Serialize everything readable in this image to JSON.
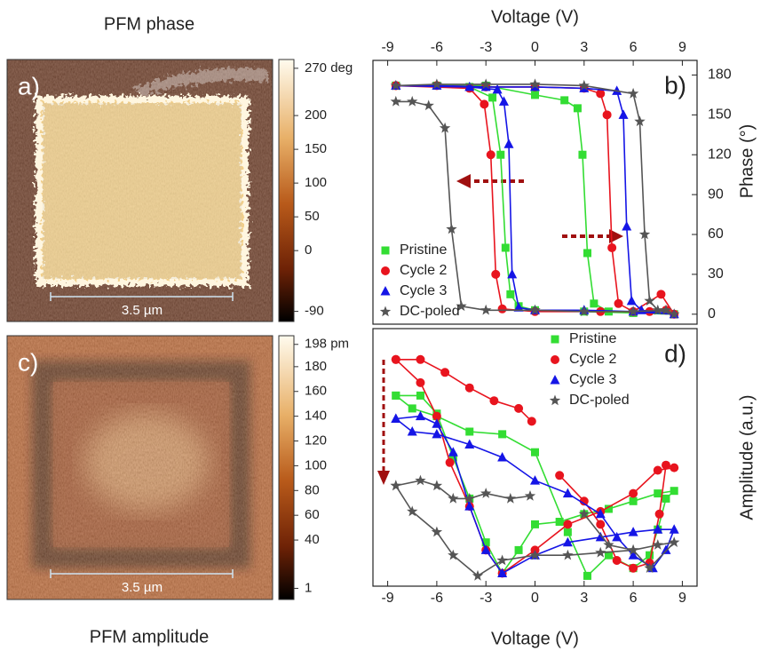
{
  "images": [
    {
      "title": "PFM phase",
      "panel_label": "a)",
      "scale_bar": "3.5 µm",
      "colorbar": {
        "clim": [
          -105,
          283
        ],
        "ticks": [
          {
            "value": 270,
            "label": "270 deg"
          },
          200,
          150,
          100,
          50,
          0,
          -90
        ]
      }
    },
    {
      "title": "PFM amplitude",
      "panel_label": "c)",
      "scale_bar": "3.5 µm",
      "colorbar": {
        "clim": [
          -8,
          205
        ],
        "ticks": [
          {
            "value": 198,
            "label": "198 pm"
          },
          180,
          160,
          140,
          120,
          100,
          80,
          60,
          40,
          1
        ]
      }
    }
  ],
  "chart_data": [
    {
      "type": "line",
      "panel_label": "b)",
      "xlabel": "Voltage (V)",
      "ylabel": "Phase (°)",
      "xlim": [
        -9.9,
        9.9
      ],
      "xticks": [
        -9,
        -6,
        -3,
        0,
        3,
        6,
        9
      ],
      "ylim": [
        -7.5,
        191
      ],
      "yticks": [
        0,
        30,
        60,
        90,
        120,
        150,
        180
      ],
      "legend": "lower left",
      "series": [
        {
          "name": "Pristine",
          "color": "#33dd33",
          "marker": "square",
          "x": [
            -8.5,
            -6,
            -3,
            0,
            1.8,
            2.6,
            2.9,
            3.2,
            3.6,
            4.5,
            6,
            8.5,
            6,
            3,
            0,
            -1,
            -1.5,
            -1.8,
            -2.1,
            -2.6,
            -4,
            -8.5
          ],
          "values": [
            172,
            172,
            172,
            165,
            161,
            155,
            120,
            46,
            8,
            2,
            1,
            0,
            1,
            2,
            3,
            6,
            15,
            50,
            120,
            163,
            171,
            172
          ]
        },
        {
          "name": "Cycle 2",
          "color": "#e8141e",
          "marker": "circle",
          "x": [
            -8.5,
            -6,
            -3,
            0,
            3,
            4,
            4.4,
            4.7,
            5.1,
            6,
            7.7,
            8.5,
            8,
            7,
            4,
            0,
            -2,
            -2.4,
            -2.7,
            -3.1,
            -4,
            -8.5
          ],
          "values": [
            172,
            172,
            171,
            171,
            170,
            166,
            150,
            50,
            8,
            2,
            15,
            0,
            3,
            2,
            2,
            2,
            4,
            30,
            120,
            158,
            170,
            172
          ]
        },
        {
          "name": "Cycle 3",
          "color": "#1515e6",
          "marker": "triangle",
          "x": [
            -8.5,
            -6,
            -3,
            0,
            3,
            5,
            5.4,
            5.6,
            5.9,
            6.5,
            8.5,
            6,
            3,
            0,
            -1,
            -1.4,
            -1.6,
            -1.9,
            -2.3,
            -4,
            -8.5
          ],
          "values": [
            172,
            172,
            171,
            171,
            170,
            168,
            150,
            66,
            10,
            3,
            0,
            2,
            3,
            3,
            5,
            30,
            128,
            160,
            169,
            171,
            172
          ]
        },
        {
          "name": "DC-poled",
          "color": "#555555",
          "marker": "star",
          "x": [
            -8.5,
            -6,
            -3,
            0,
            3,
            6,
            6.4,
            6.7,
            7,
            7.5,
            8.5,
            8,
            6,
            3,
            0,
            -3,
            -4.5,
            -5.1,
            -5.5,
            -6.5,
            -7.5,
            -8.5
          ],
          "values": [
            172,
            173,
            173,
            173,
            172,
            166,
            145,
            60,
            10,
            3,
            0,
            3,
            2,
            2,
            3,
            3,
            6,
            64,
            140,
            157,
            160,
            160
          ]
        }
      ]
    },
    {
      "type": "line",
      "panel_label": "d)",
      "xlabel": "Voltage (V)",
      "ylabel": "Amplitude (a.u.)",
      "xlim": [
        -9.9,
        9.9
      ],
      "xticks": [
        -9,
        -6,
        -3,
        0,
        3,
        6,
        9
      ],
      "ylim": [
        0,
        100
      ],
      "legend": "upper right",
      "series": [
        {
          "name": "Pristine",
          "color": "#33dd33",
          "marker": "square",
          "x": [
            -8.5,
            -7,
            -6,
            -5,
            -4,
            -3,
            -2,
            -1,
            0,
            1.5,
            3,
            4.5,
            6,
            7.5,
            8.5,
            8,
            7.5,
            7,
            6,
            4.5,
            3.2,
            2,
            0,
            -2,
            -4,
            -6,
            -7.5,
            -8.5
          ],
          "values": [
            74,
            74,
            67,
            50,
            34,
            17,
            5,
            14,
            24,
            25,
            28,
            30,
            33,
            36,
            37,
            34,
            22,
            12,
            7,
            12,
            4,
            21,
            52,
            59,
            60,
            66,
            69,
            74
          ]
        },
        {
          "name": "Cycle 2",
          "color": "#e8141e",
          "marker": "circle",
          "x": [
            -8.5,
            -7,
            -5.5,
            -4,
            -2.5,
            -1,
            -0.2,
            null,
            -8.5,
            -7,
            -6,
            -5.2,
            -4,
            -3,
            -2,
            0,
            2,
            4,
            6,
            7.5,
            8.5,
            8,
            7.6,
            7,
            6,
            5,
            4,
            3,
            1.5
          ],
          "values": [
            88,
            88,
            83,
            77,
            72,
            69,
            64,
            null,
            88,
            79,
            66,
            48,
            31,
            14,
            5,
            14,
            24,
            29,
            36,
            45,
            46,
            47,
            28,
            9,
            7,
            10,
            24,
            33,
            43
          ]
        },
        {
          "name": "Cycle 3",
          "color": "#1515e6",
          "marker": "triangle",
          "x": [
            -8.5,
            -7,
            -6,
            -5,
            -4,
            -3,
            -2,
            0,
            2,
            4,
            6,
            7.5,
            8.5,
            8,
            7.2,
            6,
            5,
            4,
            2,
            0,
            -2,
            -4,
            -6,
            -7.5,
            -8.5
          ],
          "values": [
            65,
            66,
            63,
            52,
            31,
            14,
            5,
            12,
            17,
            19,
            21,
            22,
            22,
            14,
            7,
            12,
            19,
            28,
            36,
            41,
            50,
            55,
            59,
            60,
            65
          ]
        },
        {
          "name": "DC-poled",
          "color": "#555555",
          "marker": "star",
          "x": [
            -8.5,
            -7,
            -6,
            -5,
            -4,
            -3,
            -1.5,
            -0.3,
            null,
            -8.5,
            -7.5,
            -6,
            -5,
            -3.5,
            -2,
            0,
            2,
            4,
            6,
            7.5,
            8.5,
            7,
            6,
            4.5,
            3
          ],
          "values": [
            39,
            41,
            39,
            34,
            34,
            36,
            34,
            35,
            null,
            39,
            29,
            21,
            12,
            4,
            10,
            12,
            12,
            13,
            14,
            16,
            17,
            7,
            14,
            16,
            28
          ]
        }
      ]
    }
  ]
}
